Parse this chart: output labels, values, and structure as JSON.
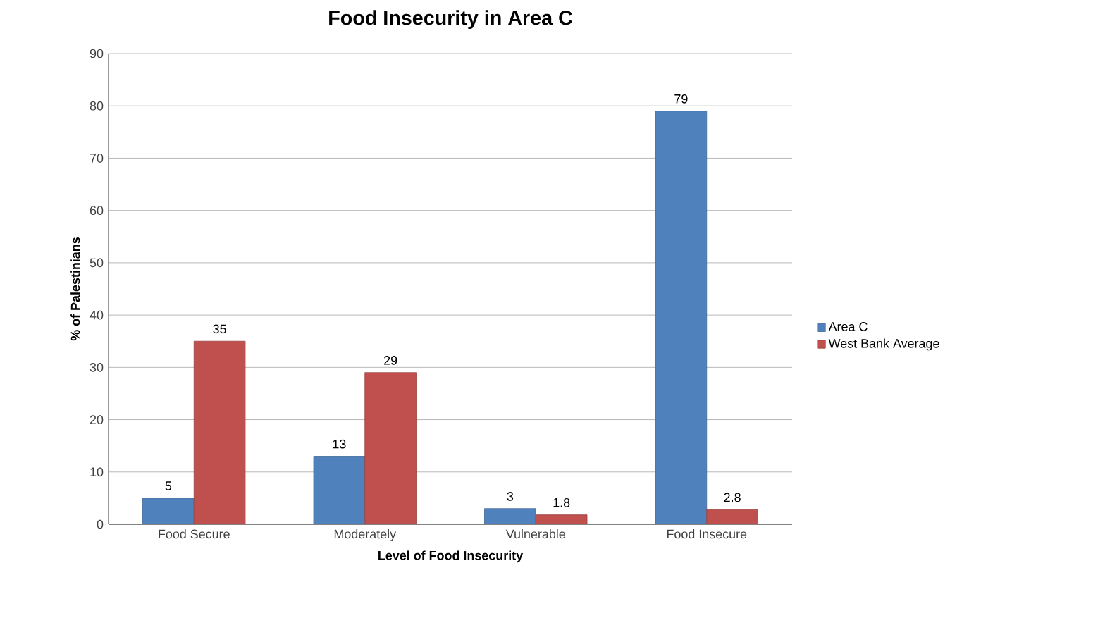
{
  "chart_data": {
    "type": "bar",
    "title": "Food Insecurity in Area C",
    "xlabel": "Level of Food Insecurity",
    "ylabel": "% of Palestinians",
    "categories": [
      "Food Secure",
      "Moderately",
      "Vulnerable",
      "Food Insecure"
    ],
    "series": [
      {
        "name": "Area C",
        "color": "#4f81bd",
        "values": [
          5,
          13,
          3,
          79
        ]
      },
      {
        "name": "West Bank Average",
        "color": "#c0504d",
        "values": [
          35,
          29,
          1.8,
          2.8
        ]
      }
    ],
    "ylim": [
      0,
      90
    ],
    "yticks": [
      0,
      10,
      20,
      30,
      40,
      50,
      60,
      70,
      80,
      90
    ],
    "grid": "y",
    "legend": "right",
    "data_labels": true
  }
}
